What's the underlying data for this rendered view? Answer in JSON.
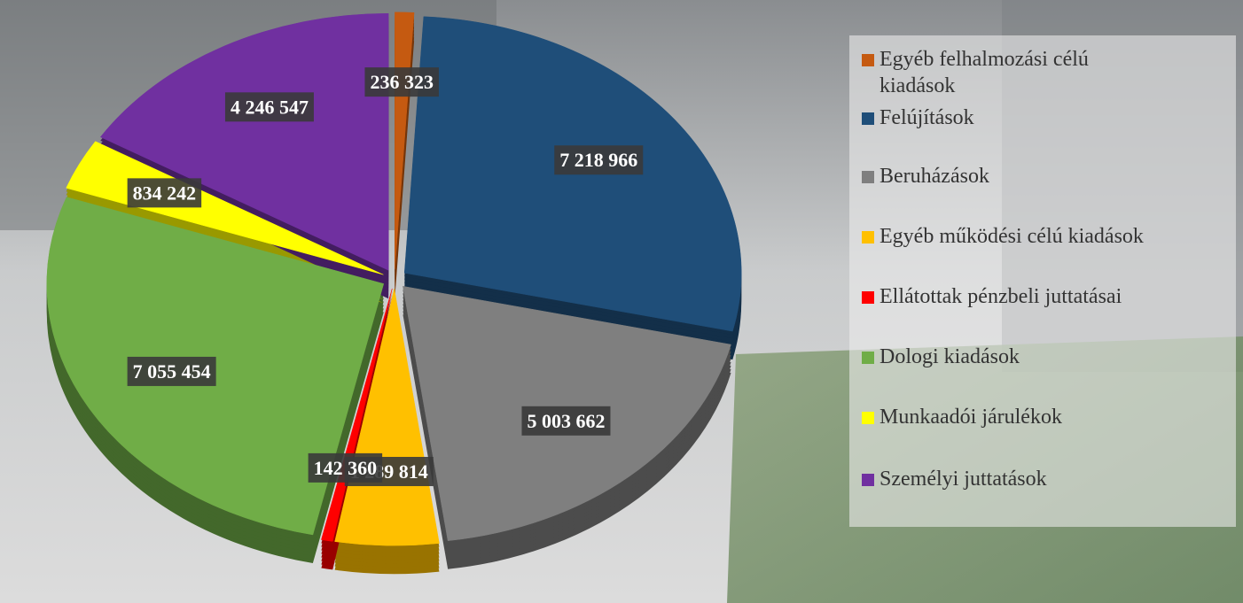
{
  "chart_data": {
    "type": "pie",
    "categories": [
      "Egyéb felhalmozási célú kiadások",
      "Felújítások",
      "Beruházások",
      "Egyéb működési célú kiadások",
      "Ellátottak pénzbeli juttatásai",
      "Dologi  kiadások",
      "Munkaadói járulékok",
      "Személyi juttatások"
    ],
    "values": [
      236323,
      7218966,
      5003662,
      1289814,
      142360,
      7055454,
      834242,
      4246547
    ],
    "value_labels": [
      "236 323",
      "7 218 966",
      "5 003 662",
      "1 289 814",
      "142 360",
      "7 055 454",
      "834 242",
      "4 246 547"
    ],
    "colors": [
      "#c55a11",
      "#1f4e79",
      "#7f7f7f",
      "#ffc000",
      "#ff0000",
      "#70ad47",
      "#ffff00",
      "#7030a0"
    ]
  }
}
